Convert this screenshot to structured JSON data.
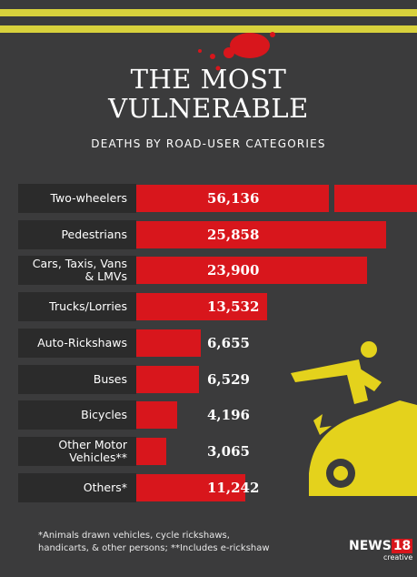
{
  "title": [
    "THE MOST",
    "VULNERABLE"
  ],
  "chart_data": {
    "type": "bar",
    "subtitle": "DEATHS BY ROAD-USER CATEGORIES",
    "categories": [
      "Two-wheelers",
      "Pedestrians",
      "Cars, Taxis, Vans & LMVs",
      "Trucks/Lorries",
      "Auto-Rickshaws",
      "Buses",
      "Bicycles",
      "Other Motor Vehicles**",
      "Others*"
    ],
    "values": [
      56136,
      25858,
      23900,
      13532,
      6655,
      6529,
      4196,
      3065,
      11242
    ],
    "value_labels": [
      "56,136",
      "25,858",
      "23,900",
      "13,532",
      "6,655",
      "6,529",
      "4,196",
      "3,065",
      "11,242"
    ],
    "color": "#d8161c"
  },
  "footnote": [
    "*Animals drawn vehicles, cycle rickshaws,",
    "handicarts, & other persons; **Includes e-rickshaw"
  ],
  "logo": {
    "name": "NEWS",
    "number": "18",
    "sub": "creative"
  }
}
